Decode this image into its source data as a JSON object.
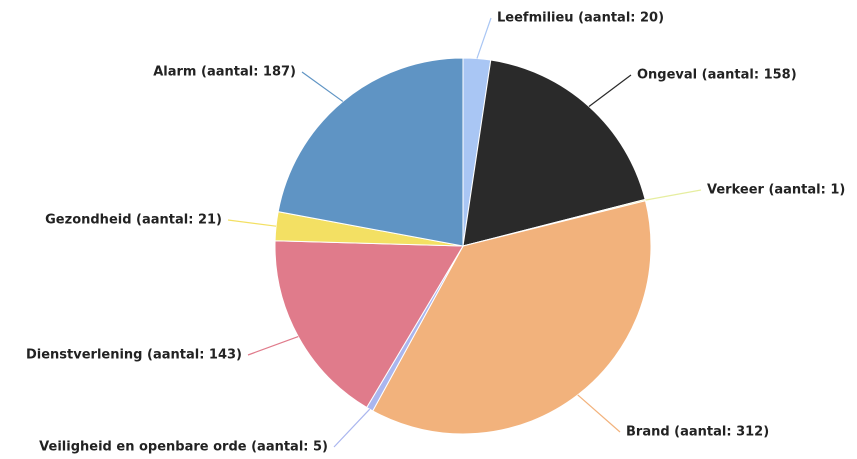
{
  "chart_data": {
    "type": "pie",
    "labels": [
      "Leefmilieu (aantal: 20)",
      "Ongeval (aantal: 158)",
      "Verkeer (aantal: 1)",
      "Brand (aantal: 312)",
      "Veiligheid en openbare orde (aantal: 5)",
      "Dienstverlening (aantal: 143)",
      "Gezondheid (aantal: 21)",
      "Alarm (aantal: 187)"
    ],
    "values": [
      20,
      158,
      1,
      312,
      5,
      143,
      21,
      187
    ],
    "colors": [
      "#a9c6f4",
      "#2a2a2a",
      "#e6eea0",
      "#f2b27c",
      "#aab6ef",
      "#e07b8b",
      "#f3e063",
      "#5f94c4"
    ]
  }
}
